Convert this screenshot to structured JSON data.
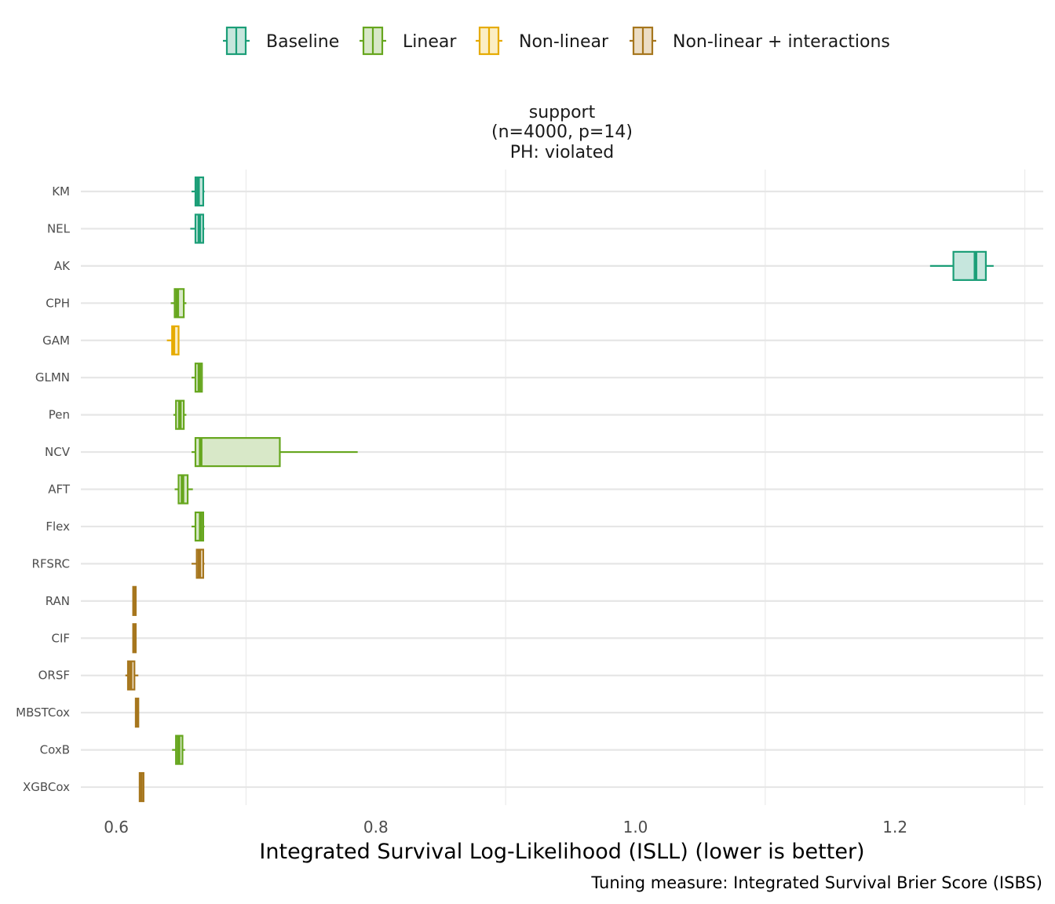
{
  "chart_data": {
    "type": "boxplot",
    "orientation": "horizontal",
    "facet_title": [
      "support",
      "(n=4000, p=14)",
      "PH: violated"
    ],
    "xlabel": "Integrated Survival Log-Likelihood (ISLL) (lower is better)",
    "caption": "Tuning measure: Integrated Survival Brier Score (ISBS)",
    "xlim": [
      0.5727,
      1.3142
    ],
    "x_ticks": [
      0.6,
      0.8,
      1.0,
      1.2
    ],
    "x_tick_labels": [
      "0.6",
      "0.8",
      "1.0",
      "1.2"
    ],
    "grid": true,
    "legend_position": "top",
    "groups": [
      {
        "name": "Baseline",
        "color": "#1b9e77",
        "fill": "#c6e6dd"
      },
      {
        "name": "Linear",
        "color": "#66a61e",
        "fill": "#d8e8c8"
      },
      {
        "name": "Non-linear",
        "color": "#e6ab02",
        "fill": "#fbeec4"
      },
      {
        "name": "Non-linear + interactions",
        "color": "#a6761d",
        "fill": "#ecddc4"
      }
    ],
    "categories": [
      "KM",
      "NEL",
      "AK",
      "CPH",
      "GAM",
      "GLMN",
      "Pen",
      "NCV",
      "AFT",
      "Flex",
      "RFSRC",
      "RAN",
      "CIF",
      "ORSF",
      "MBSTCox",
      "CoxB",
      "XGBCox"
    ],
    "boxes": [
      {
        "label": "KM",
        "group": "Baseline",
        "min": 0.658,
        "q1": 0.661,
        "median": 0.663,
        "q3": 0.667,
        "max": 0.668
      },
      {
        "label": "NEL",
        "group": "Baseline",
        "min": 0.657,
        "q1": 0.661,
        "median": 0.664,
        "q3": 0.667,
        "max": 0.668
      },
      {
        "label": "AK",
        "group": "Baseline",
        "min": 1.227,
        "q1": 1.245,
        "median": 1.262,
        "q3": 1.27,
        "max": 1.276
      },
      {
        "label": "CPH",
        "group": "Linear",
        "min": 0.642,
        "q1": 0.645,
        "median": 0.647,
        "q3": 0.652,
        "max": 0.654
      },
      {
        "label": "GAM",
        "group": "Non-linear",
        "min": 0.639,
        "q1": 0.643,
        "median": 0.644,
        "q3": 0.648,
        "max": 0.648
      },
      {
        "label": "GLMN",
        "group": "Linear",
        "min": 0.658,
        "q1": 0.661,
        "median": 0.664,
        "q3": 0.666,
        "max": 0.666
      },
      {
        "label": "Pen",
        "group": "Linear",
        "min": 0.644,
        "q1": 0.646,
        "median": 0.649,
        "q3": 0.652,
        "max": 0.654
      },
      {
        "label": "NCV",
        "group": "Linear",
        "min": 0.658,
        "q1": 0.661,
        "median": 0.665,
        "q3": 0.726,
        "max": 0.786
      },
      {
        "label": "AFT",
        "group": "Linear",
        "min": 0.645,
        "q1": 0.648,
        "median": 0.651,
        "q3": 0.655,
        "max": 0.659
      },
      {
        "label": "Flex",
        "group": "Linear",
        "min": 0.658,
        "q1": 0.661,
        "median": 0.665,
        "q3": 0.667,
        "max": 0.668
      },
      {
        "label": "RFSRC",
        "group": "Non-linear + interactions",
        "min": 0.658,
        "q1": 0.662,
        "median": 0.664,
        "q3": 0.667,
        "max": 0.668
      },
      {
        "label": "RAN",
        "group": "Non-linear + interactions",
        "min": 0.613,
        "q1": 0.613,
        "median": 0.614,
        "q3": 0.615,
        "max": 0.615
      },
      {
        "label": "CIF",
        "group": "Non-linear + interactions",
        "min": 0.613,
        "q1": 0.613,
        "median": 0.614,
        "q3": 0.615,
        "max": 0.615
      },
      {
        "label": "ORSF",
        "group": "Non-linear + interactions",
        "min": 0.607,
        "q1": 0.609,
        "median": 0.611,
        "q3": 0.614,
        "max": 0.617
      },
      {
        "label": "MBSTCox",
        "group": "Non-linear + interactions",
        "min": 0.615,
        "q1": 0.615,
        "median": 0.616,
        "q3": 0.617,
        "max": 0.617
      },
      {
        "label": "CoxB",
        "group": "Linear",
        "min": 0.643,
        "q1": 0.646,
        "median": 0.648,
        "q3": 0.651,
        "max": 0.653
      },
      {
        "label": "XGBCox",
        "group": "Non-linear + interactions",
        "min": 0.618,
        "q1": 0.618,
        "median": 0.619,
        "q3": 0.621,
        "max": 0.621
      }
    ]
  }
}
